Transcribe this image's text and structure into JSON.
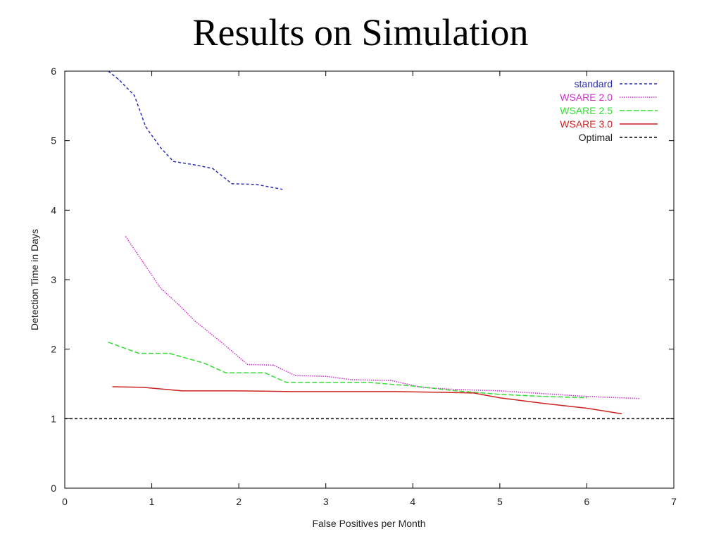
{
  "slide": {
    "title": "Results on Simulation"
  },
  "chart_data": {
    "type": "line",
    "xlabel": "False Positives per Month",
    "ylabel": "Detection Time in Days",
    "xlim": [
      0,
      7
    ],
    "ylim": [
      0,
      6
    ],
    "x_ticks": [
      0,
      1,
      2,
      3,
      4,
      5,
      6,
      7
    ],
    "y_ticks": [
      0,
      1,
      2,
      3,
      4,
      5,
      6
    ],
    "grid": false,
    "legend_position": "top-right",
    "series": [
      {
        "name": "standard",
        "color": "#2b2fb5",
        "dash": "dashed",
        "points": [
          [
            0.5,
            6.0
          ],
          [
            0.62,
            5.88
          ],
          [
            0.8,
            5.65
          ],
          [
            0.93,
            5.2
          ],
          [
            1.1,
            4.9
          ],
          [
            1.25,
            4.7
          ],
          [
            1.5,
            4.65
          ],
          [
            1.7,
            4.6
          ],
          [
            1.92,
            4.38
          ],
          [
            2.2,
            4.37
          ],
          [
            2.5,
            4.3
          ]
        ]
      },
      {
        "name": "WSARE 2.0",
        "color": "#cc33cc",
        "dash": "dotted",
        "points": [
          [
            0.7,
            3.62
          ],
          [
            0.9,
            3.25
          ],
          [
            1.1,
            2.88
          ],
          [
            1.3,
            2.65
          ],
          [
            1.5,
            2.4
          ],
          [
            1.8,
            2.1
          ],
          [
            2.1,
            1.78
          ],
          [
            2.4,
            1.77
          ],
          [
            2.65,
            1.62
          ],
          [
            3.0,
            1.61
          ],
          [
            3.3,
            1.56
          ],
          [
            3.75,
            1.55
          ],
          [
            4.1,
            1.45
          ],
          [
            4.5,
            1.42
          ],
          [
            5.0,
            1.4
          ],
          [
            5.5,
            1.36
          ],
          [
            6.0,
            1.32
          ],
          [
            6.6,
            1.29
          ]
        ]
      },
      {
        "name": "WSARE 2.5",
        "color": "#33dd33",
        "dash": "dash",
        "points": [
          [
            0.5,
            2.1
          ],
          [
            0.85,
            1.94
          ],
          [
            1.2,
            1.94
          ],
          [
            1.6,
            1.8
          ],
          [
            1.85,
            1.66
          ],
          [
            2.3,
            1.66
          ],
          [
            2.55,
            1.52
          ],
          [
            3.0,
            1.52
          ],
          [
            3.5,
            1.52
          ],
          [
            4.0,
            1.47
          ],
          [
            4.5,
            1.4
          ],
          [
            5.0,
            1.35
          ],
          [
            5.5,
            1.32
          ],
          [
            6.0,
            1.3
          ]
        ]
      },
      {
        "name": "WSARE 3.0",
        "color": "#cc2222",
        "dash": "solid",
        "points": [
          [
            0.55,
            1.46
          ],
          [
            0.9,
            1.45
          ],
          [
            1.35,
            1.4
          ],
          [
            2.0,
            1.4
          ],
          [
            2.6,
            1.39
          ],
          [
            3.2,
            1.39
          ],
          [
            3.8,
            1.39
          ],
          [
            4.3,
            1.38
          ],
          [
            4.7,
            1.37
          ],
          [
            5.0,
            1.3
          ],
          [
            5.5,
            1.22
          ],
          [
            6.0,
            1.15
          ],
          [
            6.4,
            1.07
          ]
        ]
      },
      {
        "name": "Optimal",
        "color": "#000000",
        "dash": "dashed",
        "points": [
          [
            0,
            1.0
          ],
          [
            7,
            1.0
          ]
        ]
      }
    ]
  }
}
